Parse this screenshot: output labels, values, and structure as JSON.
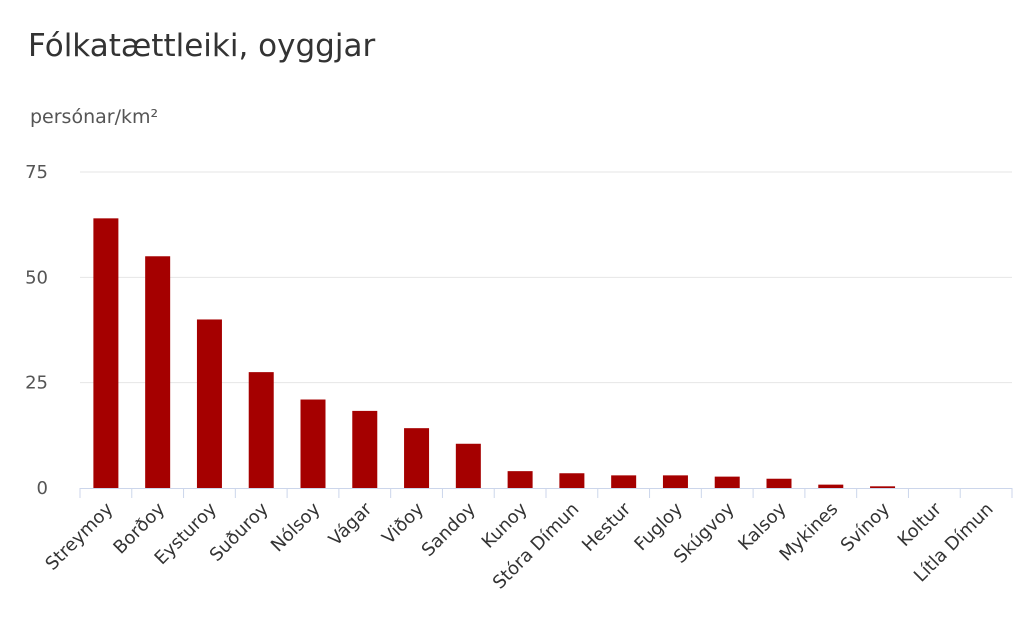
{
  "chart_data": {
    "type": "bar",
    "title": "Fólkatættleiki, oyggjar",
    "ylabel": "persónar/km²",
    "xlabel": "",
    "ylim": [
      0,
      75
    ],
    "yticks": [
      0,
      25,
      50,
      75
    ],
    "grid": true,
    "bar_color": "#a50000",
    "categories": [
      "Streymoy",
      "Borðoy",
      "Eysturoy",
      "Suðuroy",
      "Nólsoy",
      "Vágar",
      "Viðoy",
      "Sandoy",
      "Kunoy",
      "Stóra Dímun",
      "Hestur",
      "Fugloy",
      "Skúgvoy",
      "Kalsoy",
      "Mykines",
      "Svínoy",
      "Koltur",
      "Lítla Dímun"
    ],
    "values": [
      64,
      55,
      40,
      27.5,
      21,
      18.3,
      14.2,
      10.5,
      4,
      3.5,
      3,
      3,
      2.7,
      2.2,
      0.8,
      0.4,
      0,
      0
    ]
  }
}
